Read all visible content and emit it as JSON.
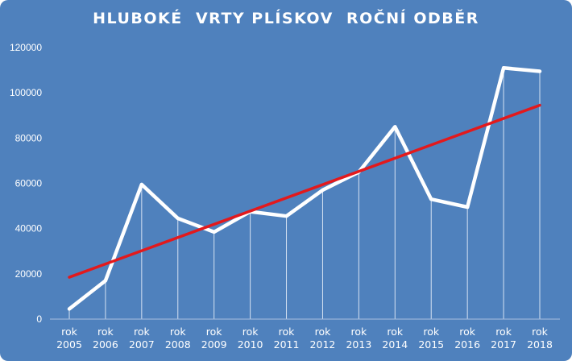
{
  "chart_data": {
    "type": "line",
    "title": "HLUBOKÉ  VRTY PLÍSKOV  ROČNÍ ODBĚR",
    "xlabel": "",
    "ylabel": "",
    "ylim": [
      0,
      120000
    ],
    "yticks": [
      "0",
      "20000",
      "40000",
      "60000",
      "80000",
      "100000",
      "120000"
    ],
    "categories": [
      [
        "rok",
        "2005"
      ],
      [
        "rok",
        "2006"
      ],
      [
        "rok",
        "2007"
      ],
      [
        "rok",
        "2008"
      ],
      [
        "rok",
        "2009"
      ],
      [
        "rok",
        "2010"
      ],
      [
        "rok",
        "2011"
      ],
      [
        "rok",
        "2012"
      ],
      [
        "rok",
        "2013"
      ],
      [
        "rok",
        "2014"
      ],
      [
        "rok",
        "2015"
      ],
      [
        "rok",
        "2016"
      ],
      [
        "rok",
        "2017"
      ],
      [
        "rok",
        "2018"
      ]
    ],
    "series": [
      {
        "values": [
          4500,
          17000,
          59500,
          44500,
          38500,
          47500,
          45500,
          57000,
          65000,
          85000,
          53000,
          49500,
          111000,
          109500
        ],
        "color": "#ffffff"
      }
    ],
    "trendline": {
      "type": "linear",
      "color": "#e3191c",
      "from": 18500,
      "to": 94500
    },
    "grid": false,
    "legend": "none",
    "background": "#4f81bd"
  }
}
